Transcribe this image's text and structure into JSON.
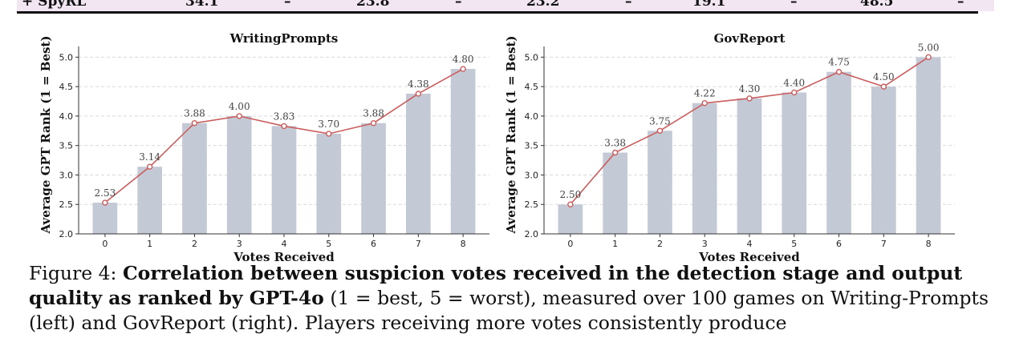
{
  "table_row": {
    "label": "+ SpyRL",
    "cells": [
      "34.1",
      "–",
      "23.8",
      "–",
      "23.2",
      "–",
      "19.1",
      "–",
      "48.5",
      "–"
    ]
  },
  "colors": {
    "bar": "#c4c9d6",
    "line": "#cb5d5d",
    "grid": "#d9d9d9"
  },
  "chart_data": [
    {
      "type": "bar",
      "title": "WritingPrompts",
      "xlabel": "Votes Received",
      "ylabel": "Average GPT Rank (1 = Best)",
      "categories": [
        "0",
        "1",
        "2",
        "3",
        "4",
        "5",
        "6",
        "7",
        "8"
      ],
      "values": [
        2.53,
        3.14,
        3.88,
        4.0,
        3.83,
        3.7,
        3.88,
        4.38,
        4.8
      ],
      "value_labels": [
        "2.53",
        "3.14",
        "3.88",
        "4.00",
        "3.83",
        "3.70",
        "3.88",
        "4.38",
        "4.80"
      ],
      "ylim": [
        2.0,
        5.1
      ],
      "yticks": [
        "2.0",
        "2.5",
        "3.0",
        "3.5",
        "4.0",
        "4.5",
        "5.0"
      ],
      "overlay": "line",
      "grid": true
    },
    {
      "type": "bar",
      "title": "GovReport",
      "xlabel": "Votes Received",
      "ylabel": "Average GPT Rank (1 = Best)",
      "categories": [
        "0",
        "1",
        "2",
        "3",
        "4",
        "5",
        "6",
        "7",
        "8"
      ],
      "values": [
        2.5,
        3.38,
        3.75,
        4.22,
        4.3,
        4.4,
        4.75,
        4.5,
        5.0
      ],
      "value_labels": [
        "2.50",
        "3.38",
        "3.75",
        "4.22",
        "4.30",
        "4.40",
        "4.75",
        "4.50",
        "5.00"
      ],
      "ylim": [
        2.0,
        5.1
      ],
      "yticks": [
        "2.0",
        "2.5",
        "3.0",
        "3.5",
        "4.0",
        "4.5",
        "5.0"
      ],
      "overlay": "line",
      "grid": true
    }
  ],
  "caption": {
    "prefix": "Figure 4:",
    "bold": "Correlation between suspicion votes received in the detection stage and output quality as ranked by GPT-4o",
    "rest": "(1 = best, 5 = worst), measured over 100 games on Writing-Prompts (left) and GovReport (right). Players receiving more votes consistently produce"
  }
}
